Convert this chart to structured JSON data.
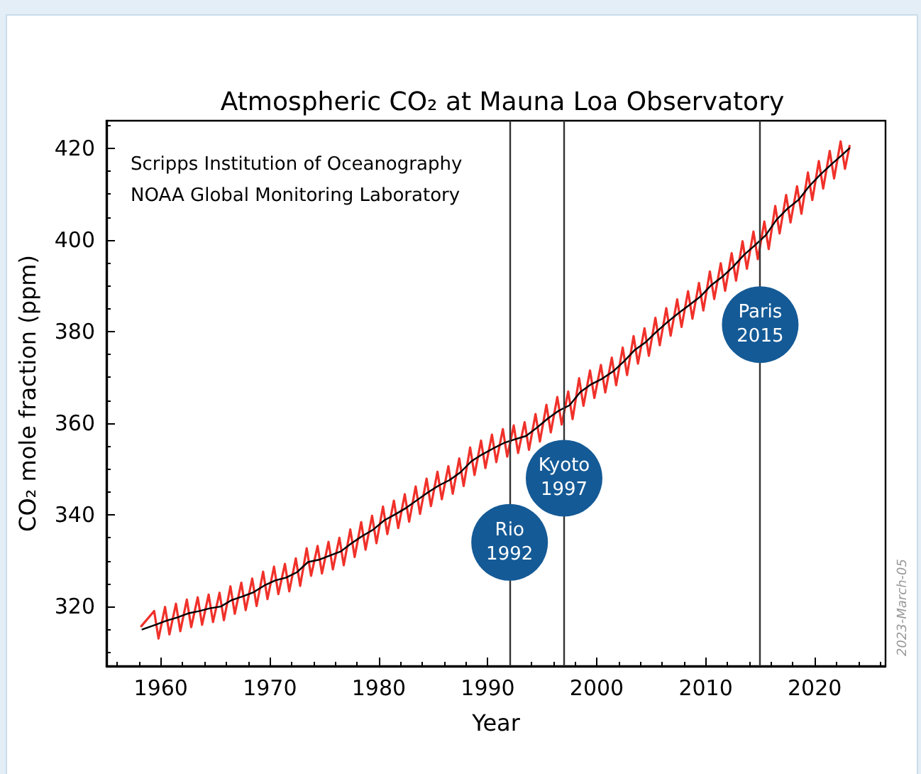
{
  "chart_data": {
    "type": "line",
    "title": "Atmospheric CO₂ at Mauna Loa Observatory",
    "xlabel": "Year",
    "ylabel": "CO₂ mole fraction (ppm)",
    "xlim": [
      1955,
      2026.5
    ],
    "xticks": [
      1960,
      1970,
      1980,
      1990,
      2000,
      2010,
      2020
    ],
    "ylim": [
      307,
      426
    ],
    "yticks": [
      320,
      340,
      360,
      380,
      400,
      420
    ],
    "grid": false,
    "marker": "none",
    "line_style": "solid",
    "series": [
      {
        "color": "#f0312a",
        "x": [
          1958.2,
          1959.38,
          1959.78,
          1960.38,
          1960.78,
          1961.38,
          1961.78,
          1962.38,
          1962.78,
          1963.38,
          1963.78,
          1964.38,
          1964.78,
          1965.38,
          1965.78,
          1966.38,
          1966.78,
          1967.38,
          1967.78,
          1968.38,
          1968.78,
          1969.38,
          1969.78,
          1970.38,
          1970.78,
          1971.38,
          1971.78,
          1972.38,
          1972.78,
          1973.38,
          1973.78,
          1974.38,
          1974.78,
          1975.38,
          1975.78,
          1976.38,
          1976.78,
          1977.38,
          1977.78,
          1978.38,
          1978.78,
          1979.38,
          1979.78,
          1980.38,
          1980.78,
          1981.38,
          1981.78,
          1982.38,
          1982.78,
          1983.38,
          1983.78,
          1984.38,
          1984.78,
          1985.38,
          1985.78,
          1986.38,
          1986.78,
          1987.38,
          1987.78,
          1988.38,
          1988.78,
          1989.38,
          1989.78,
          1990.38,
          1990.78,
          1991.38,
          1991.78,
          1992.38,
          1992.78,
          1993.38,
          1993.78,
          1994.38,
          1994.78,
          1995.38,
          1995.78,
          1996.38,
          1996.78,
          1997.38,
          1997.78,
          1998.38,
          1998.78,
          1999.38,
          1999.78,
          2000.38,
          2000.78,
          2001.38,
          2001.78,
          2002.38,
          2002.78,
          2003.38,
          2003.78,
          2004.38,
          2004.78,
          2005.38,
          2005.78,
          2006.38,
          2006.78,
          2007.38,
          2007.78,
          2008.38,
          2008.78,
          2009.38,
          2009.78,
          2010.38,
          2010.78,
          2011.38,
          2011.78,
          2012.38,
          2012.78,
          2013.38,
          2013.78,
          2014.38,
          2014.78,
          2015.38,
          2015.78,
          2016.38,
          2016.78,
          2017.38,
          2017.78,
          2018.38,
          2018.78,
          2019.38,
          2019.78,
          2020.38,
          2020.78,
          2021.38,
          2021.78,
          2022.38,
          2022.78,
          2023.2
        ],
        "values": [
          315.7,
          319.0,
          313.0,
          319.9,
          313.9,
          320.6,
          314.6,
          321.5,
          315.5,
          322.0,
          316.0,
          322.6,
          316.6,
          323.0,
          317.0,
          324.4,
          318.4,
          325.2,
          319.2,
          326.1,
          320.1,
          327.6,
          321.6,
          328.7,
          322.7,
          329.3,
          323.3,
          330.5,
          324.5,
          332.7,
          326.7,
          333.2,
          327.2,
          334.1,
          328.1,
          335.0,
          329.0,
          336.8,
          330.8,
          338.4,
          332.4,
          339.8,
          333.8,
          341.8,
          335.8,
          343.1,
          337.1,
          344.5,
          338.5,
          346.2,
          340.2,
          347.9,
          341.9,
          349.4,
          343.4,
          350.6,
          344.6,
          352.3,
          346.3,
          354.7,
          348.7,
          356.2,
          350.2,
          357.5,
          351.5,
          358.7,
          352.7,
          359.5,
          353.5,
          360.2,
          354.2,
          362.0,
          356.0,
          364.0,
          358.0,
          365.7,
          359.7,
          366.9,
          360.9,
          369.8,
          363.8,
          371.5,
          365.5,
          372.7,
          366.7,
          374.3,
          368.3,
          376.5,
          370.5,
          379.0,
          373.0,
          380.7,
          374.7,
          383.0,
          377.0,
          385.1,
          379.1,
          387.0,
          381.0,
          388.8,
          382.8,
          390.6,
          384.6,
          393.1,
          387.1,
          394.9,
          388.9,
          397.1,
          391.1,
          399.7,
          393.7,
          401.8,
          395.8,
          404.0,
          398.0,
          407.4,
          401.4,
          409.8,
          403.8,
          411.7,
          405.7,
          414.7,
          408.7,
          417.2,
          411.2,
          419.4,
          413.4,
          421.5,
          415.5,
          420.5
        ]
      },
      {
        "color": "#000000",
        "x": [
          1958.3,
          1959.5,
          1960.5,
          1961.5,
          1962.5,
          1963.5,
          1964.5,
          1965.5,
          1966.5,
          1967.5,
          1968.5,
          1969.5,
          1970.5,
          1971.5,
          1972.5,
          1973.5,
          1974.5,
          1975.5,
          1976.5,
          1977.5,
          1978.5,
          1979.5,
          1980.5,
          1981.5,
          1982.5,
          1983.5,
          1984.5,
          1985.5,
          1986.5,
          1987.5,
          1988.5,
          1989.5,
          1990.5,
          1991.5,
          1992.5,
          1993.5,
          1994.5,
          1995.5,
          1996.5,
          1997.5,
          1998.5,
          1999.5,
          2000.5,
          2001.5,
          2002.5,
          2003.5,
          2004.5,
          2005.5,
          2006.5,
          2007.5,
          2008.5,
          2009.5,
          2010.5,
          2011.5,
          2012.5,
          2013.5,
          2014.5,
          2015.5,
          2016.5,
          2017.5,
          2018.5,
          2019.5,
          2020.5,
          2021.5,
          2022.5,
          2023.2
        ],
        "values": [
          315.0,
          316.0,
          316.9,
          317.6,
          318.5,
          319.0,
          319.6,
          320.0,
          321.4,
          322.2,
          323.1,
          324.6,
          325.7,
          326.3,
          327.5,
          329.7,
          330.2,
          331.1,
          332.0,
          333.8,
          335.4,
          336.8,
          338.8,
          340.1,
          341.5,
          343.2,
          344.9,
          346.4,
          347.6,
          349.3,
          351.7,
          353.2,
          354.5,
          355.7,
          356.5,
          357.2,
          359.0,
          361.0,
          362.7,
          363.9,
          366.8,
          368.5,
          369.7,
          371.3,
          373.5,
          376.0,
          377.7,
          380.0,
          382.1,
          384.0,
          385.8,
          387.6,
          390.1,
          391.9,
          394.1,
          396.7,
          398.8,
          401.0,
          404.4,
          406.8,
          408.7,
          411.7,
          414.2,
          416.4,
          418.5,
          420.0
        ]
      }
    ],
    "ref_lines": [
      {
        "axis": "x",
        "value": 1992,
        "color": "#333333"
      },
      {
        "axis": "x",
        "value": 1997,
        "color": "#333333"
      },
      {
        "axis": "x",
        "value": 2015,
        "color": "#333333"
      }
    ],
    "annotations": [
      "Scripps Institution of Oceanography\nNOAA Global Monitoring Laboratory",
      "2023-March-05",
      {
        "text": "Rio\n1992",
        "x": 1992,
        "y": 334
      },
      {
        "text": "Kyoto\n1997",
        "x": 1997,
        "y": 348
      },
      {
        "text": "Paris\n2015",
        "x": 2015,
        "y": 381.5
      }
    ]
  }
}
